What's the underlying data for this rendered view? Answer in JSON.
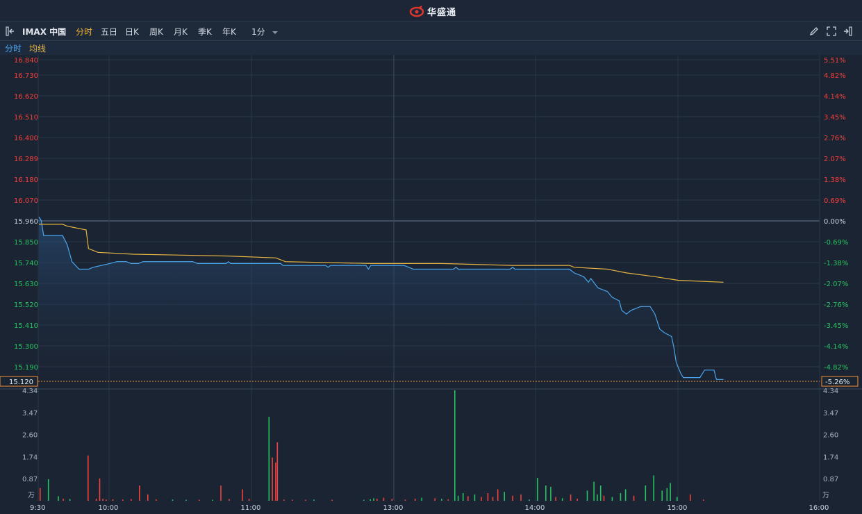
{
  "header": {
    "brand": "华盛通"
  },
  "toolbar": {
    "symbol": "IMAX 中国",
    "tabs": [
      "分时",
      "五日",
      "日K",
      "周K",
      "月K",
      "季K",
      "年K"
    ],
    "active_tab": "分时",
    "interval": "1分"
  },
  "legend": {
    "price_label": "分时",
    "avg_label": "均线"
  },
  "colors": {
    "price_line": "#4aa6ee",
    "avg_line": "#e7b541",
    "up": "#f2403c",
    "down": "#27c262",
    "background": "#1b2433"
  },
  "chart_data": {
    "type": "line",
    "price_axis": {
      "ticks": [
        "16.840",
        "16.730",
        "16.620",
        "16.510",
        "16.400",
        "16.289",
        "16.180",
        "16.070",
        "15.960",
        "15.850",
        "15.740",
        "15.630",
        "15.520",
        "15.410",
        "15.300",
        "15.190"
      ],
      "ylim": [
        15.12,
        16.84
      ],
      "reference_close": 15.96
    },
    "pct_axis": {
      "ticks": [
        "5.51%",
        "4.82%",
        "4.14%",
        "3.45%",
        "2.76%",
        "2.07%",
        "1.38%",
        "0.69%",
        "0.00%",
        "-0.69%",
        "-1.38%",
        "-2.07%",
        "-2.76%",
        "-3.45%",
        "-4.14%",
        "-4.82%"
      ]
    },
    "current": {
      "price": "15.120",
      "pct": "-5.26%"
    },
    "time_axis": [
      "9:30",
      "10:00",
      "11:00",
      "13:00",
      "14:00",
      "15:00",
      "16:00"
    ],
    "volume_axis": {
      "ticks": [
        "4.34",
        "3.47",
        "2.60",
        "1.74",
        "0.87"
      ],
      "unit": "万",
      "ymax": 4.34
    },
    "series": [
      {
        "name": "分时",
        "points": [
          [
            0,
            16.0
          ],
          [
            1,
            15.98
          ],
          [
            2,
            15.9
          ],
          [
            10,
            15.9
          ],
          [
            12,
            15.85
          ],
          [
            14,
            15.76
          ],
          [
            17,
            15.72
          ],
          [
            21,
            15.72
          ],
          [
            23,
            15.73
          ],
          [
            30,
            15.75
          ],
          [
            33,
            15.76
          ],
          [
            37,
            15.76
          ],
          [
            39,
            15.75
          ],
          [
            42,
            15.75
          ],
          [
            44,
            15.76
          ],
          [
            65,
            15.76
          ],
          [
            67,
            15.75
          ],
          [
            79,
            15.75
          ],
          [
            80,
            15.76
          ],
          [
            81,
            15.75
          ],
          [
            102,
            15.75
          ],
          [
            103,
            15.74
          ],
          [
            121,
            15.74
          ],
          [
            122,
            15.73
          ],
          [
            123,
            15.74
          ],
          [
            138,
            15.74
          ],
          [
            139,
            15.72
          ],
          [
            140,
            15.74
          ],
          [
            154,
            15.74
          ],
          [
            158,
            15.72
          ],
          [
            175,
            15.72
          ],
          [
            176,
            15.73
          ],
          [
            177,
            15.72
          ],
          [
            199,
            15.72
          ],
          [
            200,
            15.73
          ],
          [
            201,
            15.72
          ],
          [
            224,
            15.72
          ],
          [
            226,
            15.7
          ],
          [
            230,
            15.68
          ],
          [
            232,
            15.65
          ],
          [
            233,
            15.67
          ],
          [
            236,
            15.62
          ],
          [
            240,
            15.6
          ],
          [
            242,
            15.57
          ],
          [
            245,
            15.55
          ],
          [
            246,
            15.5
          ],
          [
            248,
            15.48
          ],
          [
            250,
            15.5
          ],
          [
            254,
            15.52
          ],
          [
            258,
            15.52
          ],
          [
            260,
            15.48
          ],
          [
            262,
            15.4
          ],
          [
            264,
            15.38
          ],
          [
            267,
            15.36
          ],
          [
            268,
            15.3
          ],
          [
            269,
            15.22
          ],
          [
            271,
            15.16
          ],
          [
            272,
            15.14
          ],
          [
            276,
            15.14
          ],
          [
            279,
            15.14
          ],
          [
            281,
            15.18
          ],
          [
            285,
            15.18
          ],
          [
            286,
            15.13
          ],
          [
            289,
            15.13
          ]
        ]
      },
      {
        "name": "均线",
        "points": [
          [
            0,
            15.96
          ],
          [
            10,
            15.96
          ],
          [
            12,
            15.95
          ],
          [
            20,
            15.93
          ],
          [
            21,
            15.83
          ],
          [
            25,
            15.81
          ],
          [
            40,
            15.8
          ],
          [
            80,
            15.79
          ],
          [
            100,
            15.78
          ],
          [
            104,
            15.76
          ],
          [
            140,
            15.75
          ],
          [
            170,
            15.75
          ],
          [
            200,
            15.74
          ],
          [
            224,
            15.74
          ],
          [
            226,
            15.73
          ],
          [
            240,
            15.72
          ],
          [
            248,
            15.7
          ],
          [
            260,
            15.68
          ],
          [
            270,
            15.66
          ],
          [
            289,
            15.65
          ]
        ]
      }
    ],
    "volume_bars": [
      {
        "t": 0,
        "v": 0.5,
        "up": true
      },
      {
        "t": 5,
        "v": 0.85,
        "up": false
      },
      {
        "t": 11,
        "v": 0.18,
        "up": false
      },
      {
        "t": 14,
        "v": 0.08,
        "up": true
      },
      {
        "t": 18,
        "v": 0.07,
        "up": false
      },
      {
        "t": 29,
        "v": 1.78,
        "up": true
      },
      {
        "t": 34,
        "v": 0.08,
        "up": true
      },
      {
        "t": 36,
        "v": 0.88,
        "up": true
      },
      {
        "t": 38,
        "v": 0.08,
        "up": true
      },
      {
        "t": 40,
        "v": 0.05,
        "up": true
      },
      {
        "t": 44,
        "v": 0.06,
        "up": true
      },
      {
        "t": 50,
        "v": 0.05,
        "up": true
      },
      {
        "t": 55,
        "v": 0.07,
        "up": true
      },
      {
        "t": 60,
        "v": 0.6,
        "up": true
      },
      {
        "t": 65,
        "v": 0.25,
        "up": true
      },
      {
        "t": 70,
        "v": 0.06,
        "up": true
      },
      {
        "t": 80,
        "v": 0.05,
        "up": false
      },
      {
        "t": 88,
        "v": 0.04,
        "up": false
      },
      {
        "t": 96,
        "v": 0.04,
        "up": true
      },
      {
        "t": 104,
        "v": 0.04,
        "up": false
      },
      {
        "t": 109,
        "v": 0.6,
        "up": true
      },
      {
        "t": 114,
        "v": 0.07,
        "up": true
      },
      {
        "t": 122,
        "v": 0.45,
        "up": true
      },
      {
        "t": 126,
        "v": 0.08,
        "up": true
      },
      {
        "t": 138,
        "v": 3.3,
        "up": false
      },
      {
        "t": 140,
        "v": 1.7,
        "up": true
      },
      {
        "t": 142,
        "v": 1.5,
        "up": true
      },
      {
        "t": 143,
        "v": 2.3,
        "up": true
      },
      {
        "t": 147,
        "v": 0.05,
        "up": true
      },
      {
        "t": 152,
        "v": 0.04,
        "up": true
      },
      {
        "t": 160,
        "v": 0.04,
        "up": true
      },
      {
        "t": 165,
        "v": 0.05,
        "up": false
      },
      {
        "t": 176,
        "v": 0.04,
        "up": true
      },
      {
        "t": 195,
        "v": 0.04,
        "up": false
      },
      {
        "t": 199,
        "v": 0.06,
        "up": false
      },
      {
        "t": 201,
        "v": 0.1,
        "up": false
      },
      {
        "t": 203,
        "v": 0.08,
        "up": true
      },
      {
        "t": 207,
        "v": 0.12,
        "up": true
      },
      {
        "t": 212,
        "v": 0.08,
        "up": true
      },
      {
        "t": 220,
        "v": 0.05,
        "up": true
      },
      {
        "t": 226,
        "v": 0.08,
        "up": true
      },
      {
        "t": 230,
        "v": 0.12,
        "up": false
      },
      {
        "t": 238,
        "v": 0.1,
        "up": true
      },
      {
        "t": 242,
        "v": 0.08,
        "up": false
      },
      {
        "t": 246,
        "v": 0.06,
        "up": true
      },
      {
        "t": 250,
        "v": 4.34,
        "up": false
      },
      {
        "t": 252,
        "v": 0.2,
        "up": false
      },
      {
        "t": 255,
        "v": 0.3,
        "up": false
      },
      {
        "t": 258,
        "v": 0.18,
        "up": true
      },
      {
        "t": 262,
        "v": 0.25,
        "up": false
      },
      {
        "t": 266,
        "v": 0.15,
        "up": true
      },
      {
        "t": 270,
        "v": 0.3,
        "up": true
      },
      {
        "t": 273,
        "v": 0.15,
        "up": true
      },
      {
        "t": 276,
        "v": 0.45,
        "up": true
      },
      {
        "t": 280,
        "v": 0.35,
        "up": false
      },
      {
        "t": 285,
        "v": 0.2,
        "up": true
      },
      {
        "t": 290,
        "v": 0.25,
        "up": true
      },
      {
        "t": 295,
        "v": 0.05,
        "up": false
      },
      {
        "t": 300,
        "v": 0.9,
        "up": false
      },
      {
        "t": 305,
        "v": 0.6,
        "up": false
      },
      {
        "t": 308,
        "v": 0.55,
        "up": false
      },
      {
        "t": 311,
        "v": 0.15,
        "up": true
      },
      {
        "t": 315,
        "v": 0.1,
        "up": false
      },
      {
        "t": 320,
        "v": 0.25,
        "up": true
      },
      {
        "t": 324,
        "v": 0.08,
        "up": true
      },
      {
        "t": 330,
        "v": 0.4,
        "up": false
      },
      {
        "t": 334,
        "v": 0.75,
        "up": false
      },
      {
        "t": 336,
        "v": 0.25,
        "up": false
      },
      {
        "t": 338,
        "v": 0.6,
        "up": false
      },
      {
        "t": 340,
        "v": 0.2,
        "up": true
      },
      {
        "t": 345,
        "v": 0.15,
        "up": false
      },
      {
        "t": 350,
        "v": 0.3,
        "up": false
      },
      {
        "t": 353,
        "v": 0.45,
        "up": false
      },
      {
        "t": 358,
        "v": 0.2,
        "up": true
      },
      {
        "t": 365,
        "v": 0.6,
        "up": false
      },
      {
        "t": 370,
        "v": 1.0,
        "up": false
      },
      {
        "t": 375,
        "v": 0.4,
        "up": false
      },
      {
        "t": 378,
        "v": 0.5,
        "up": false
      },
      {
        "t": 380,
        "v": 0.7,
        "up": false
      },
      {
        "t": 384,
        "v": 0.15,
        "up": false
      },
      {
        "t": 392,
        "v": 0.25,
        "up": true
      },
      {
        "t": 400,
        "v": 0.05,
        "up": true
      }
    ]
  }
}
